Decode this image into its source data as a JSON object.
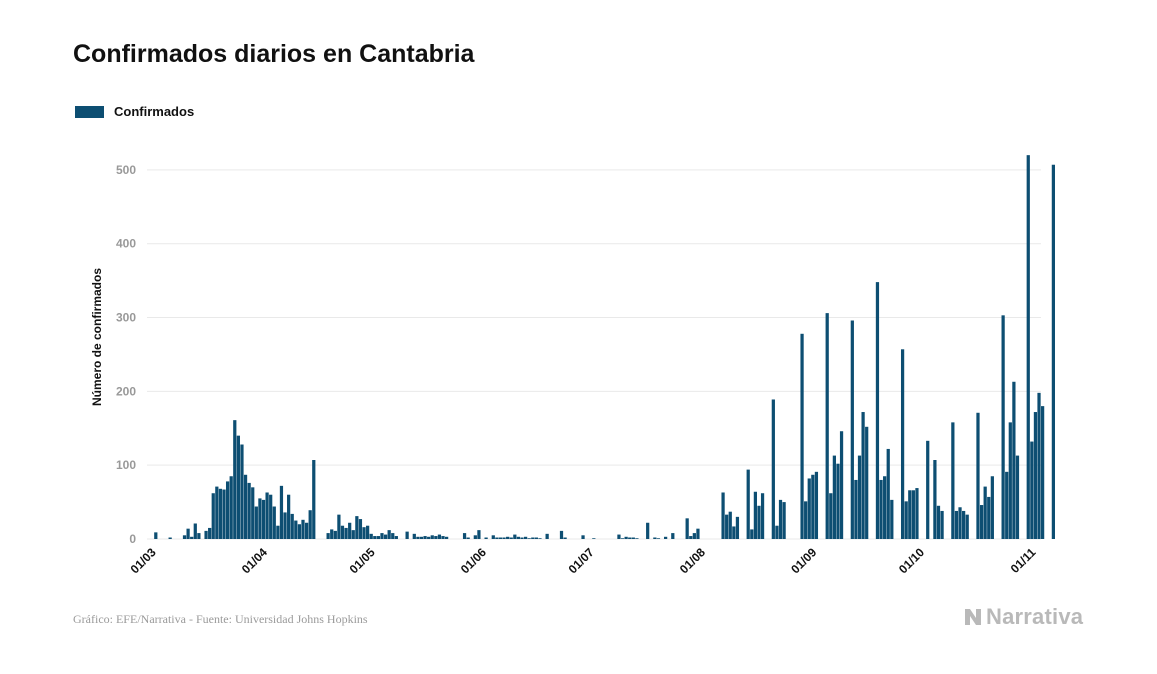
{
  "title": "Confirmados diarios en Cantabria",
  "footer": {
    "source": "Gráfico: EFE/Narrativa - Fuente: Universidad Johns Hopkins",
    "logo": "Narrativa"
  },
  "colors": {
    "bar": "#0d4e72",
    "grid": "#e9e9e9",
    "tick": "#999999",
    "logo": "#b9b9b9"
  },
  "chart_data": {
    "type": "bar",
    "title": "Confirmados diarios en Cantabria",
    "xlabel": "",
    "ylabel": "Número de confirmados",
    "ylim": [
      0,
      550
    ],
    "yticks": [
      0,
      100,
      200,
      300,
      400,
      500
    ],
    "grid": true,
    "legend": "top-left",
    "x_start": "2020-03-01",
    "x_end": "2020-11-05",
    "xticks": [
      {
        "date": "2020-03-01",
        "label": "01/03"
      },
      {
        "date": "2020-04-01",
        "label": "01/04"
      },
      {
        "date": "2020-05-01",
        "label": "01/05"
      },
      {
        "date": "2020-06-01",
        "label": "01/06"
      },
      {
        "date": "2020-07-01",
        "label": "01/07"
      },
      {
        "date": "2020-08-01",
        "label": "01/08"
      },
      {
        "date": "2020-09-01",
        "label": "01/09"
      },
      {
        "date": "2020-10-01",
        "label": "01/10"
      },
      {
        "date": "2020-11-01",
        "label": "01/11"
      }
    ],
    "series": [
      {
        "name": "Confirmados",
        "color": "#0d4e72",
        "start_date": "2020-03-01",
        "values": [
          0,
          0,
          9,
          0,
          0,
          0,
          2,
          0,
          0,
          0,
          5,
          14,
          3,
          21,
          8,
          0,
          11,
          15,
          62,
          71,
          68,
          67,
          78,
          85,
          161,
          140,
          128,
          87,
          76,
          70,
          44,
          55,
          53,
          63,
          60,
          44,
          18,
          72,
          36,
          60,
          34,
          25,
          20,
          26,
          22,
          39,
          107,
          0,
          0,
          0,
          8,
          13,
          11,
          33,
          18,
          15,
          22,
          12,
          31,
          27,
          16,
          18,
          7,
          4,
          4,
          8,
          6,
          12,
          8,
          4,
          0,
          0,
          10,
          0,
          7,
          3,
          3,
          4,
          3,
          5,
          4,
          6,
          4,
          3,
          0,
          0,
          0,
          0,
          8,
          2,
          0,
          5,
          12,
          0,
          2,
          0,
          5,
          2,
          2,
          2,
          3,
          2,
          6,
          3,
          2,
          3,
          1,
          2,
          2,
          1,
          0,
          7,
          0,
          0,
          0,
          11,
          2,
          0,
          0,
          0,
          0,
          5,
          0,
          0,
          1,
          0,
          0,
          0,
          0,
          0,
          0,
          6,
          1,
          3,
          2,
          2,
          1,
          0,
          0,
          22,
          0,
          2,
          1,
          0,
          3,
          0,
          8,
          0,
          0,
          0,
          28,
          4,
          8,
          14,
          0,
          0,
          0,
          0,
          0,
          0,
          63,
          33,
          37,
          17,
          30,
          0,
          0,
          94,
          13,
          64,
          45,
          62,
          0,
          0,
          189,
          18,
          53,
          50,
          0,
          0,
          0,
          0,
          278,
          51,
          82,
          87,
          91,
          0,
          0,
          306,
          62,
          113,
          102,
          146,
          0,
          0,
          296,
          80,
          113,
          172,
          152,
          0,
          0,
          348,
          80,
          85,
          122,
          53,
          0,
          0,
          257,
          51,
          66,
          66,
          69,
          0,
          0,
          133,
          0,
          107,
          45,
          38,
          0,
          0,
          158,
          38,
          43,
          38,
          33,
          0,
          0,
          171,
          46,
          71,
          57,
          85,
          0,
          0,
          303,
          91,
          158,
          213,
          113,
          0,
          0,
          520,
          132,
          172,
          198,
          180,
          0,
          0,
          507
        ]
      }
    ]
  }
}
